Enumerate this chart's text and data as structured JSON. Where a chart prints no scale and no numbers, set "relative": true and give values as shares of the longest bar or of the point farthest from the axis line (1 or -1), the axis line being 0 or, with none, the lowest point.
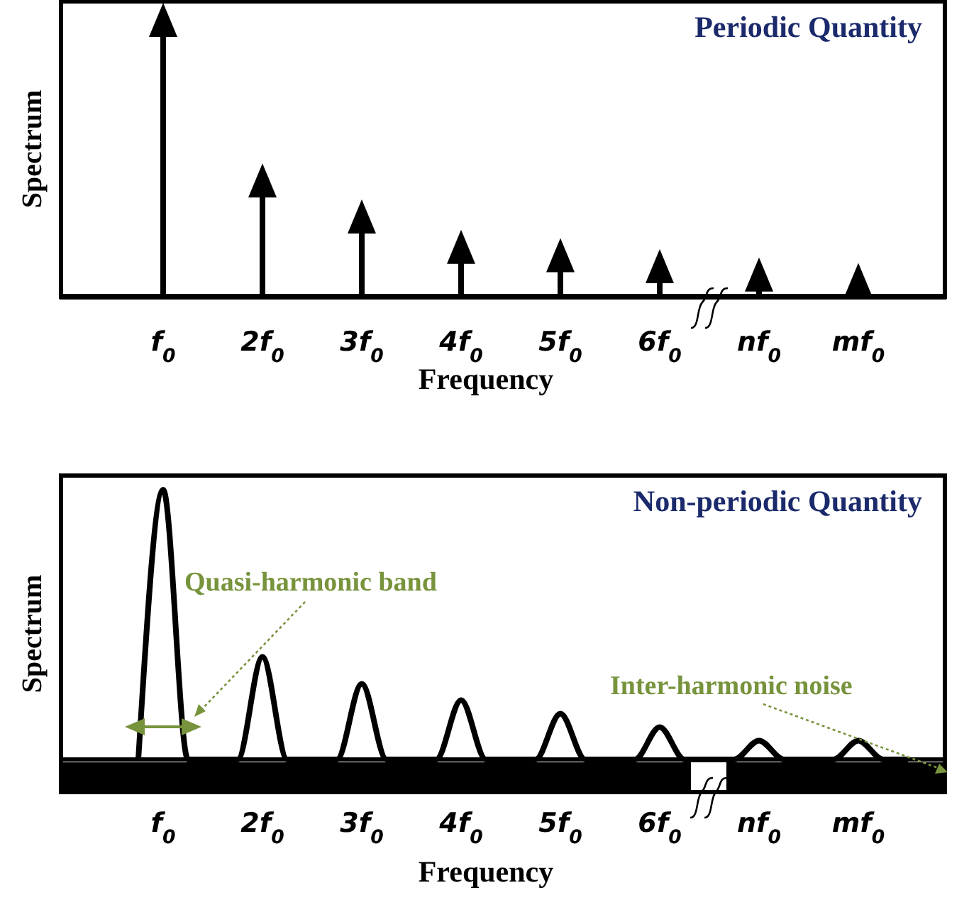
{
  "chart_data": [
    {
      "type": "lollipop",
      "title": "Periodic Quantity",
      "xlabel": "Frequency",
      "ylabel": "Spectrum",
      "relative": true,
      "categories": [
        "f$_{0}$",
        "2f$_{0}$",
        "3f$_{0}$",
        "4f$_{0}$",
        "5f$_{0}$",
        "6f$_{0}$",
        "nf$_{0}$",
        "mf$_{0}$"
      ],
      "values": [
        1,
        0.42,
        0.29,
        0.18,
        0.15,
        0.11,
        0.08,
        0.06
      ],
      "color": "#000000",
      "marker": "triangle"
    },
    {
      "type": "line",
      "title": "Non-periodic Quantity",
      "xlabel": "Frequency",
      "ylabel": "Spectrum",
      "relative": true,
      "categories": [
        null,
        "f$_{0}$",
        null,
        null,
        null,
        "2f$_{0}$",
        null,
        null,
        null,
        "3f$_{0}$",
        null,
        null,
        null,
        "4f$_{0}$",
        null,
        null,
        null,
        "5f$_{0}$",
        null,
        null,
        null,
        "6f$_{0}$",
        null,
        null,
        null,
        "nf$_{0}$",
        null,
        null,
        null,
        "mf$_{0}$",
        null,
        null
      ],
      "values": [
        0,
        1,
        0,
        0,
        0,
        0.38,
        0,
        0,
        0,
        0.28,
        0,
        0,
        0,
        0.22,
        0,
        0,
        0,
        0.17,
        0,
        0,
        0,
        0.12,
        0,
        0,
        0,
        0.07,
        0,
        0,
        0,
        0.07,
        0,
        0
      ],
      "color": "#000000",
      "annotations": [
        "Quasi-harmonic band",
        "Inter-harmonic noise"
      ]
    }
  ]
}
